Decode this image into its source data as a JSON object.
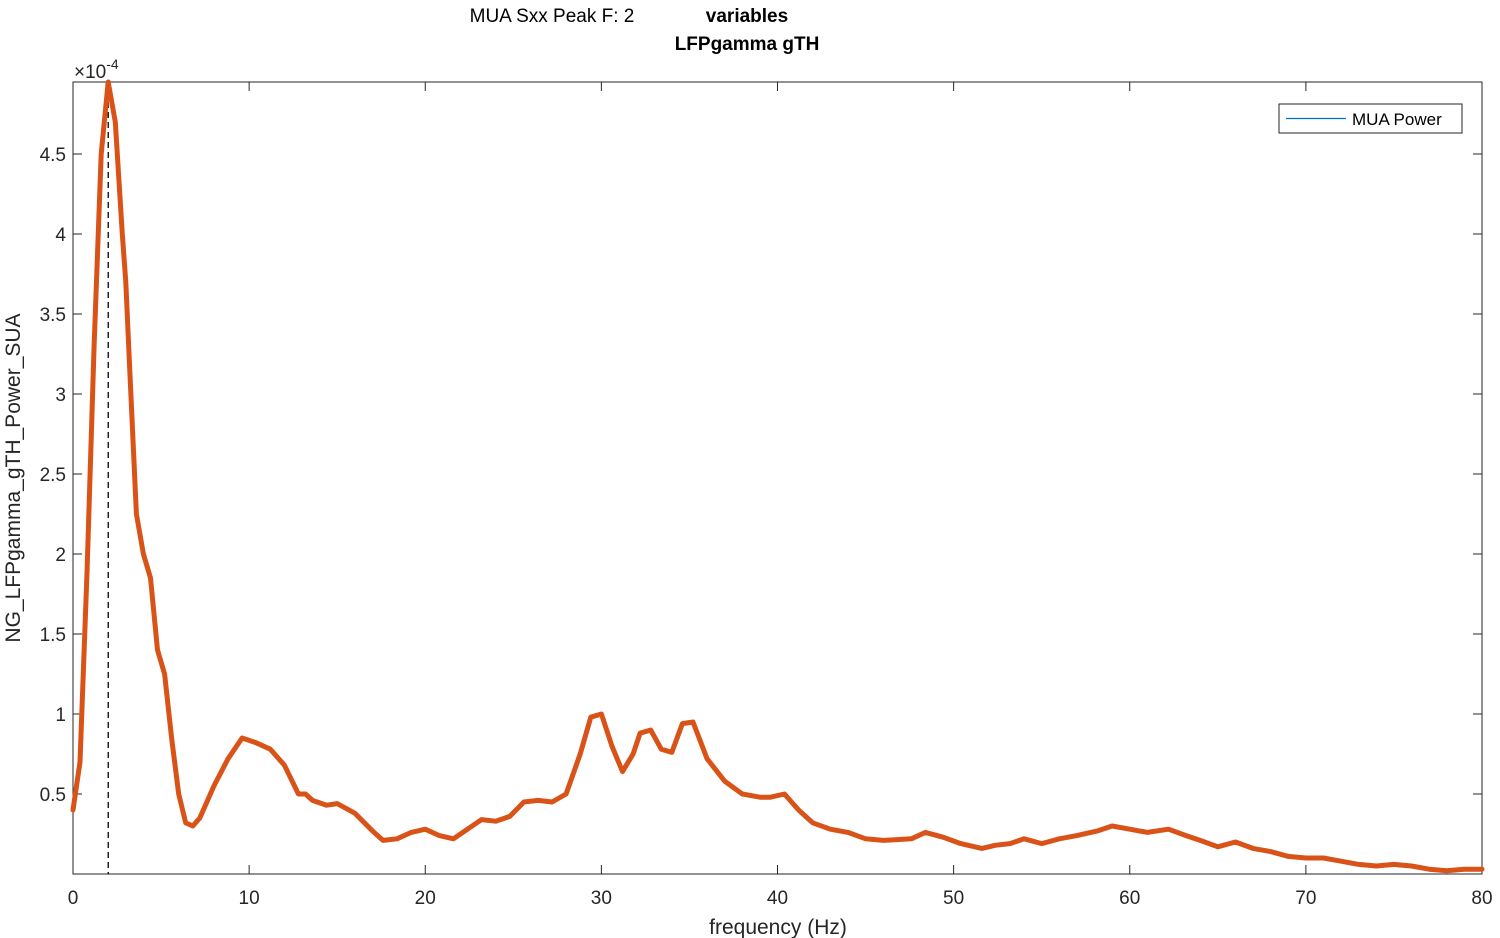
{
  "chart_data": {
    "type": "line",
    "title": "MUA Sxx Peak F: 2",
    "title_right": [
      "variables",
      "LFPgamma gTH"
    ],
    "xlabel": "frequency (Hz)",
    "ylabel": "NG_LFPgamma_gTH_Power_SUA",
    "y_exponent_label": "×10",
    "y_exponent_power": "-4",
    "xlim": [
      0,
      80
    ],
    "ylim": [
      0,
      0.000495
    ],
    "xticks": [
      "0",
      "10",
      "20",
      "30",
      "40",
      "50",
      "60",
      "70",
      "80"
    ],
    "yticks": [
      "0.5",
      "1",
      "1.5",
      "2",
      "2.5",
      "3",
      "3.5",
      "4",
      "4.5"
    ],
    "xtick_values": [
      0,
      10,
      20,
      30,
      40,
      50,
      60,
      70,
      80
    ],
    "ytick_values": [
      5e-05,
      0.0001,
      0.00015,
      0.0002,
      0.00025,
      0.0003,
      0.00035,
      0.0004,
      0.00045
    ],
    "peak_marker_x": 2,
    "grid": false,
    "legend_position": "top-right",
    "series": [
      {
        "name": "MUA Power",
        "legend_color": "#0072BD",
        "color": "#D95319",
        "x": [
          0,
          0.4,
          0.8,
          1.2,
          1.6,
          2.0,
          2.4,
          2.8,
          3.0,
          3.2,
          3.6,
          4.0,
          4.4,
          4.8,
          5.2,
          5.6,
          6.0,
          6.4,
          6.8,
          7.2,
          8.0,
          8.8,
          9.6,
          10.4,
          11.2,
          12.0,
          12.8,
          13.2,
          13.6,
          14.4,
          15.0,
          16.0,
          17.0,
          17.6,
          18.4,
          19.2,
          20.0,
          20.8,
          21.6,
          22.4,
          23.2,
          24.0,
          24.8,
          25.6,
          26.4,
          27.2,
          28.0,
          28.8,
          29.4,
          30.0,
          30.6,
          31.2,
          31.8,
          32.2,
          32.8,
          33.4,
          34.0,
          34.6,
          35.2,
          36.0,
          37.0,
          38.0,
          39.0,
          39.6,
          40.4,
          41.2,
          42.0,
          43.0,
          44.0,
          45.0,
          46.0,
          47.6,
          48.4,
          49.4,
          50.4,
          51.6,
          52.4,
          53.2,
          54.0,
          55.0,
          56.0,
          57.0,
          58.2,
          59.0,
          60.0,
          61.0,
          62.2,
          63.2,
          64.0,
          65.0,
          66.0,
          67.0,
          68.0,
          69.0,
          70.0,
          71.0,
          72.0,
          73.0,
          74.0,
          75.0,
          76.0,
          77.0,
          78.0,
          79.0,
          80.0
        ],
        "y": [
          4e-05,
          7e-05,
          0.00019,
          0.00033,
          0.00045,
          0.000495,
          0.00047,
          0.0004,
          0.00037,
          0.00032,
          0.000225,
          0.0002,
          0.000185,
          0.00014,
          0.000125,
          8.5e-05,
          5e-05,
          3.2e-05,
          3e-05,
          3.5e-05,
          5.5e-05,
          7.2e-05,
          8.5e-05,
          8.2e-05,
          7.8e-05,
          6.8e-05,
          5e-05,
          5e-05,
          4.6e-05,
          4.3e-05,
          4.4e-05,
          3.8e-05,
          2.7e-05,
          2.1e-05,
          2.2e-05,
          2.6e-05,
          2.8e-05,
          2.4e-05,
          2.2e-05,
          2.8e-05,
          3.4e-05,
          3.3e-05,
          3.6e-05,
          4.5e-05,
          4.6e-05,
          4.5e-05,
          5e-05,
          7.5e-05,
          9.8e-05,
          0.0001,
          8e-05,
          6.4e-05,
          7.5e-05,
          8.8e-05,
          9e-05,
          7.8e-05,
          7.6e-05,
          9.4e-05,
          9.5e-05,
          7.2e-05,
          5.8e-05,
          5e-05,
          4.8e-05,
          4.8e-05,
          5e-05,
          4e-05,
          3.2e-05,
          2.8e-05,
          2.6e-05,
          2.2e-05,
          2.1e-05,
          2.2e-05,
          2.6e-05,
          2.3e-05,
          1.9e-05,
          1.6e-05,
          1.8e-05,
          1.9e-05,
          2.2e-05,
          1.9e-05,
          2.2e-05,
          2.4e-05,
          2.7e-05,
          3e-05,
          2.8e-05,
          2.6e-05,
          2.8e-05,
          2.4e-05,
          2.1e-05,
          1.7e-05,
          2e-05,
          1.6e-05,
          1.4e-05,
          1.1e-05,
          1e-05,
          1e-05,
          8e-06,
          6e-06,
          5e-06,
          6e-06,
          5e-06,
          3e-06,
          2e-06,
          3e-06,
          3e-06
        ]
      }
    ]
  }
}
